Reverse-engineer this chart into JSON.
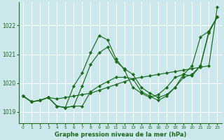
{
  "background_color": "#cce8ec",
  "plot_bg_color": "#cce8ec",
  "grid_color": "#ffffff",
  "line_color": "#1a6b1a",
  "xlabel": "Graphe pression niveau de la mer (hPa)",
  "ylim": [
    1018.6,
    1022.8
  ],
  "xlim": [
    -0.5,
    23.5
  ],
  "yticks": [
    1019,
    1020,
    1021,
    1022
  ],
  "xtick_labels": [
    "0",
    "1",
    "2",
    "3",
    "4",
    "5",
    "6",
    "7",
    "8",
    "9",
    "10",
    "11",
    "12",
    "13",
    "14",
    "15",
    "16",
    "17",
    "18",
    "19",
    "20",
    "21",
    "22",
    "23"
  ],
  "series": [
    [
      1019.55,
      1019.35,
      1019.4,
      1019.5,
      1019.45,
      1019.5,
      1019.55,
      1019.6,
      1019.65,
      1019.75,
      1019.85,
      1019.95,
      1020.05,
      1020.15,
      1020.2,
      1020.25,
      1020.3,
      1020.35,
      1020.4,
      1020.45,
      1020.5,
      1020.55,
      1020.6,
      1022.65
    ],
    [
      1019.55,
      1019.35,
      1019.4,
      1019.5,
      1019.2,
      1019.15,
      1019.2,
      1019.2,
      1019.7,
      1019.9,
      1020.05,
      1020.2,
      1020.2,
      1020.15,
      1019.7,
      1019.55,
      1019.4,
      1019.55,
      1019.85,
      1020.3,
      1020.25,
      1020.6,
      1021.8,
      1022.3
    ],
    [
      1019.55,
      1019.35,
      1019.4,
      1019.5,
      1019.2,
      1019.15,
      1019.2,
      1019.9,
      1020.65,
      1021.05,
      1021.25,
      1020.75,
      1020.5,
      1020.3,
      1019.85,
      1019.65,
      1019.5,
      1019.6,
      1019.85,
      1020.2,
      1020.3,
      1020.6,
      1021.75,
      1022.3
    ],
    [
      1019.55,
      1019.35,
      1019.4,
      1019.5,
      1019.2,
      1019.15,
      1019.9,
      1020.35,
      1021.05,
      1021.65,
      1021.5,
      1020.85,
      1020.45,
      1019.85,
      1019.65,
      1019.5,
      1019.6,
      1019.85,
      1020.2,
      1020.3,
      1020.6,
      1021.6,
      1021.8,
      1022.3
    ]
  ]
}
